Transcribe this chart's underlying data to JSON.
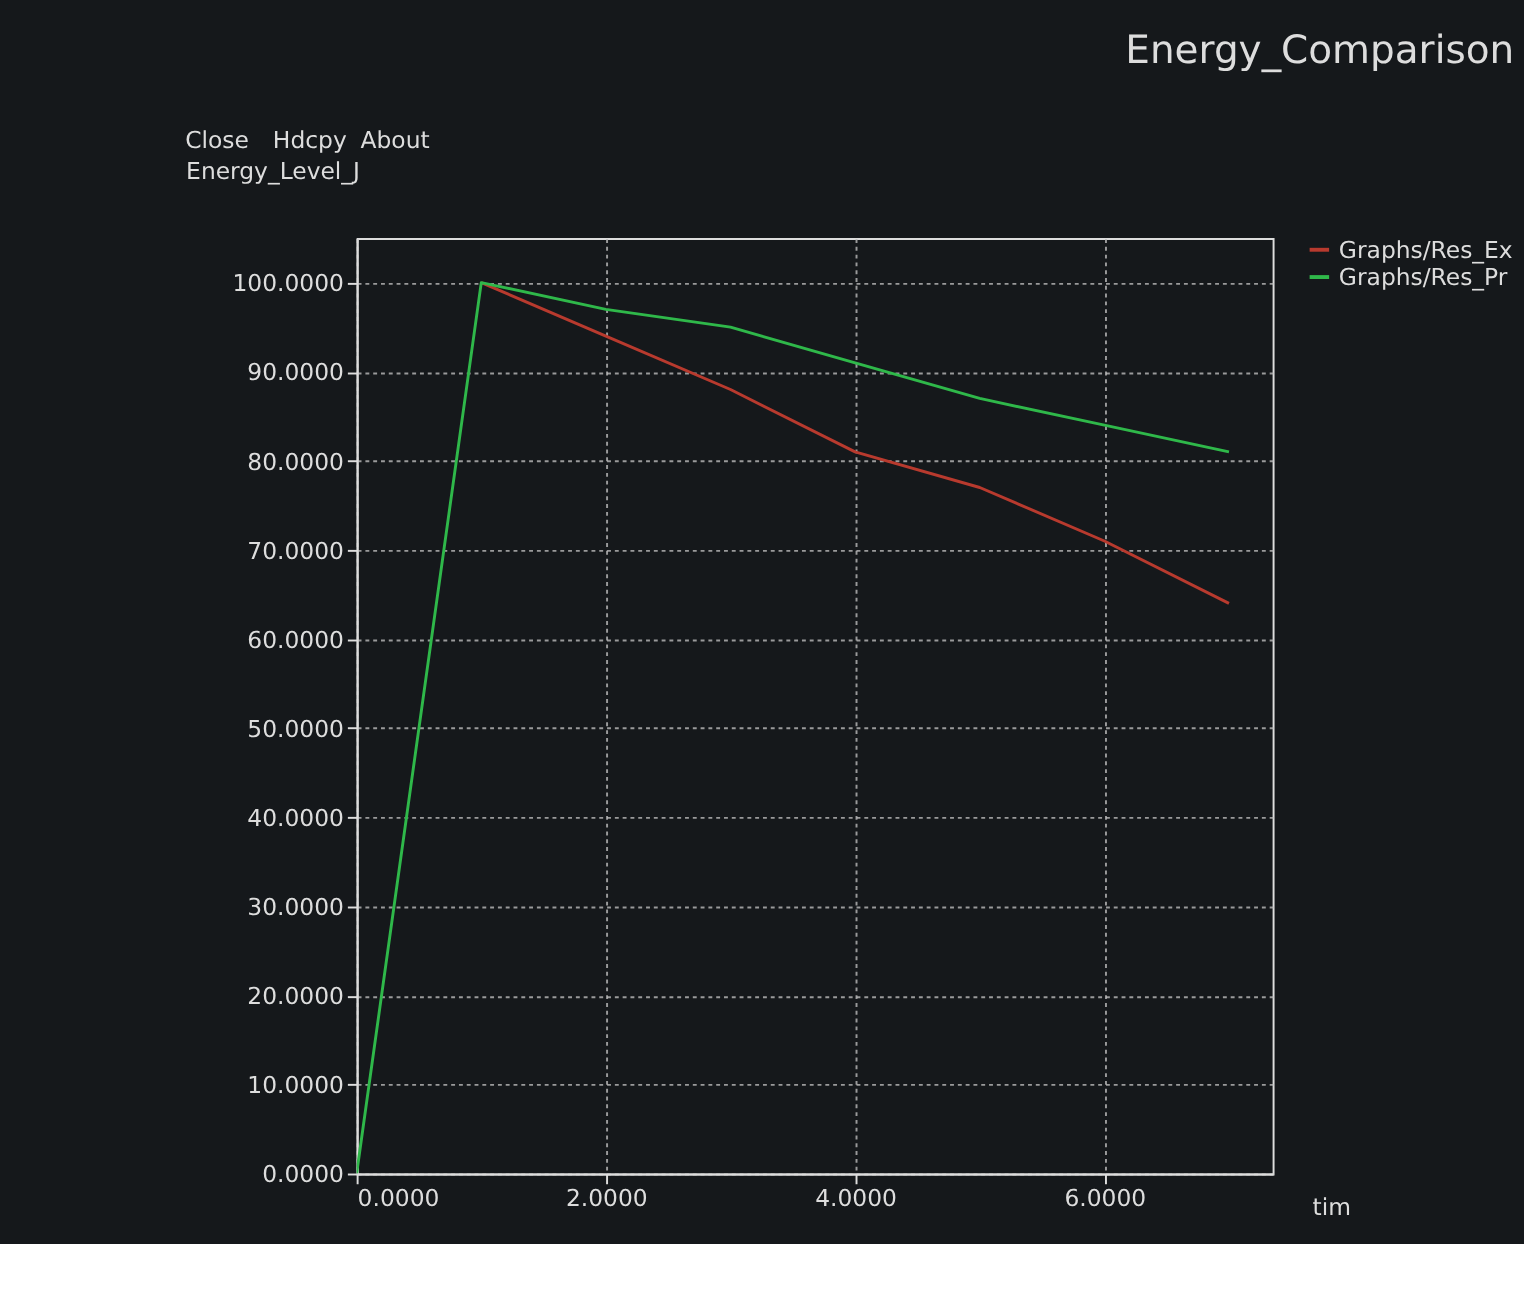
{
  "chart_data": {
    "type": "line",
    "title": "Energy_Comparison",
    "xlabel": "tim",
    "ylabel": "Energy_Level_J",
    "annotations": [
      "Close",
      "Hdcpy",
      "About"
    ],
    "x": [
      0,
      1,
      2,
      3,
      4,
      5,
      6,
      7
    ],
    "series": [
      {
        "name": "Graphs/Res_Ex",
        "color": "#b83a2e",
        "values": [
          null,
          100,
          94,
          88,
          81,
          77,
          71,
          64
        ]
      },
      {
        "name": "Graphs/Res_Pr",
        "color": "#2fb84a",
        "values": [
          0,
          100,
          97,
          95,
          91,
          87,
          84,
          81
        ]
      }
    ],
    "xlim": [
      0,
      7.35
    ],
    "ylim": [
      0,
      105
    ],
    "xticks": [
      {
        "value": 0,
        "label": "0.0000"
      },
      {
        "value": 2,
        "label": "2.0000"
      },
      {
        "value": 4,
        "label": "4.0000"
      },
      {
        "value": 6,
        "label": "6.0000"
      }
    ],
    "yticks": [
      {
        "value": 0,
        "label": "0.0000"
      },
      {
        "value": 10,
        "label": "10.0000"
      },
      {
        "value": 20,
        "label": "20.0000"
      },
      {
        "value": 30,
        "label": "30.0000"
      },
      {
        "value": 40,
        "label": "40.0000"
      },
      {
        "value": 50,
        "label": "50.0000"
      },
      {
        "value": 60,
        "label": "60.0000"
      },
      {
        "value": 70,
        "label": "70.0000"
      },
      {
        "value": 80,
        "label": "80.0000"
      },
      {
        "value": 90,
        "label": "90.0000"
      },
      {
        "value": 100,
        "label": "100.0000"
      }
    ],
    "grid": true,
    "legend": "top right",
    "marker": "none",
    "line_style": "solid"
  }
}
